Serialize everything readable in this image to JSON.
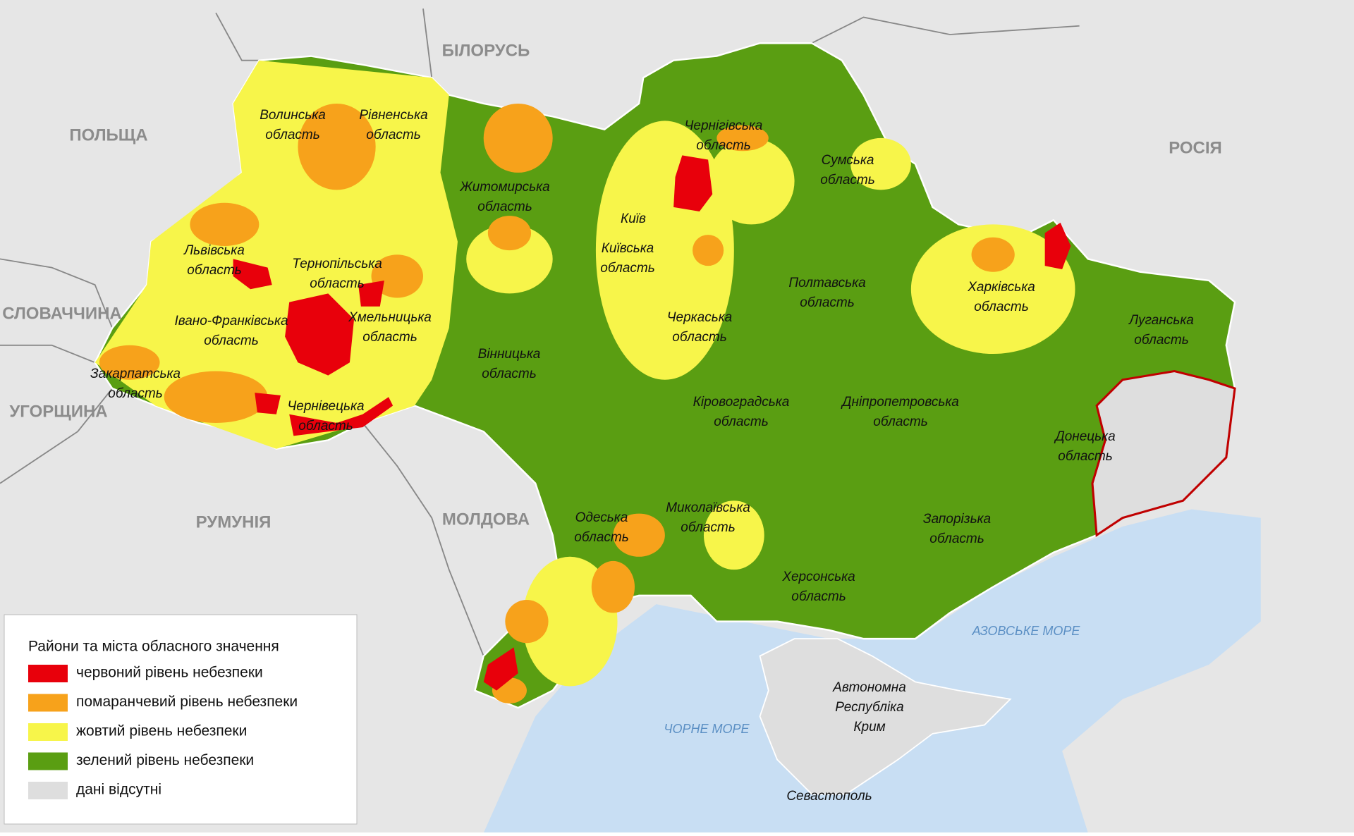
{
  "map": {
    "countries": [
      "БІЛОРУСЬ",
      "ПОЛЬЩА",
      "РОСІЯ",
      "СЛОВАЧЧИНА",
      "УГОРЩИНА",
      "РУМУНІЯ",
      "МОЛДОВА"
    ],
    "seas": [
      "АЗОВСЬКЕ МОРЕ",
      "ЧОРНЕ МОРЕ"
    ],
    "regions": [
      {
        "lines": [
          "Волинська",
          "область"
        ]
      },
      {
        "lines": [
          "Рівненська",
          "область"
        ]
      },
      {
        "lines": [
          "Житомирська",
          "область"
        ]
      },
      {
        "lines": [
          "Чернігівська",
          "область"
        ]
      },
      {
        "lines": [
          "Сумська",
          "область"
        ]
      },
      {
        "lines": [
          "Київ"
        ]
      },
      {
        "lines": [
          "Київська",
          "область"
        ]
      },
      {
        "lines": [
          "Львівська",
          "область"
        ]
      },
      {
        "lines": [
          "Тернопільська",
          "область"
        ]
      },
      {
        "lines": [
          "Хмельницька",
          "область"
        ]
      },
      {
        "lines": [
          "Івано-Франківська",
          "область"
        ]
      },
      {
        "lines": [
          "Закарпатська",
          "область"
        ]
      },
      {
        "lines": [
          "Чернівецька",
          "область"
        ]
      },
      {
        "lines": [
          "Вінницька",
          "область"
        ]
      },
      {
        "lines": [
          "Черкаська",
          "область"
        ]
      },
      {
        "lines": [
          "Полтавська",
          "область"
        ]
      },
      {
        "lines": [
          "Харківська",
          "область"
        ]
      },
      {
        "lines": [
          "Луганська",
          "область"
        ]
      },
      {
        "lines": [
          "Донецька",
          "область"
        ]
      },
      {
        "lines": [
          "Кіровоградська",
          "область"
        ]
      },
      {
        "lines": [
          "Дніпропетровська",
          "область"
        ]
      },
      {
        "lines": [
          "Одеська",
          "область"
        ]
      },
      {
        "lines": [
          "Миколаївська",
          "область"
        ]
      },
      {
        "lines": [
          "Запорізька",
          "область"
        ]
      },
      {
        "lines": [
          "Херсонська",
          "область"
        ]
      },
      {
        "lines": [
          "Автономна",
          "Республіка",
          "Крим"
        ]
      },
      {
        "lines": [
          "Севастополь"
        ]
      }
    ]
  },
  "legend": {
    "title": "Райони та міста обласного значення",
    "items": [
      {
        "label": "червоний рівень небезпеки",
        "color": "#e8000b"
      },
      {
        "label": "помаранчевий рівень небезпеки",
        "color": "#f7a21b"
      },
      {
        "label": "жовтий рівень небезпеки",
        "color": "#f7f54a"
      },
      {
        "label": "зелений рівень небезпеки",
        "color": "#5a9e12"
      },
      {
        "label": "дані відсутні",
        "color": "#dedede"
      }
    ]
  }
}
